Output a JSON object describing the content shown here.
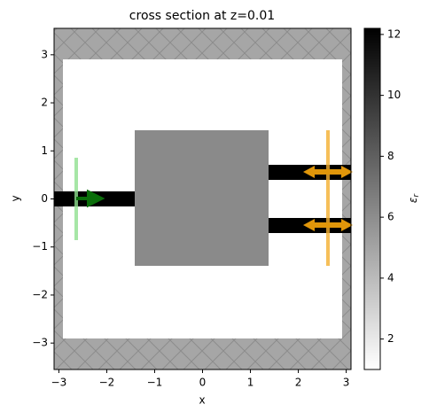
{
  "chart_data": {
    "type": "structure",
    "title": "cross section at z=0.01",
    "xlabel": "x",
    "ylabel": "y",
    "xlim": [
      -3.1,
      3.1
    ],
    "ylim": [
      -3.55,
      3.55
    ],
    "xticks": [
      {
        "value": -3,
        "label": "−3"
      },
      {
        "value": -2,
        "label": "−2"
      },
      {
        "value": -1,
        "label": "−1"
      },
      0,
      1,
      2,
      3
    ],
    "yticks": [
      {
        "value": -3,
        "label": "−3"
      },
      {
        "value": -2,
        "label": "−2"
      },
      {
        "value": -1,
        "label": "−1"
      },
      0,
      1,
      2,
      3
    ],
    "colorbar": {
      "label": "ε",
      "label_sub": "r",
      "lim": [
        1,
        12.2
      ],
      "ticks": [
        2,
        4,
        6,
        8,
        10,
        12
      ]
    }
  }
}
